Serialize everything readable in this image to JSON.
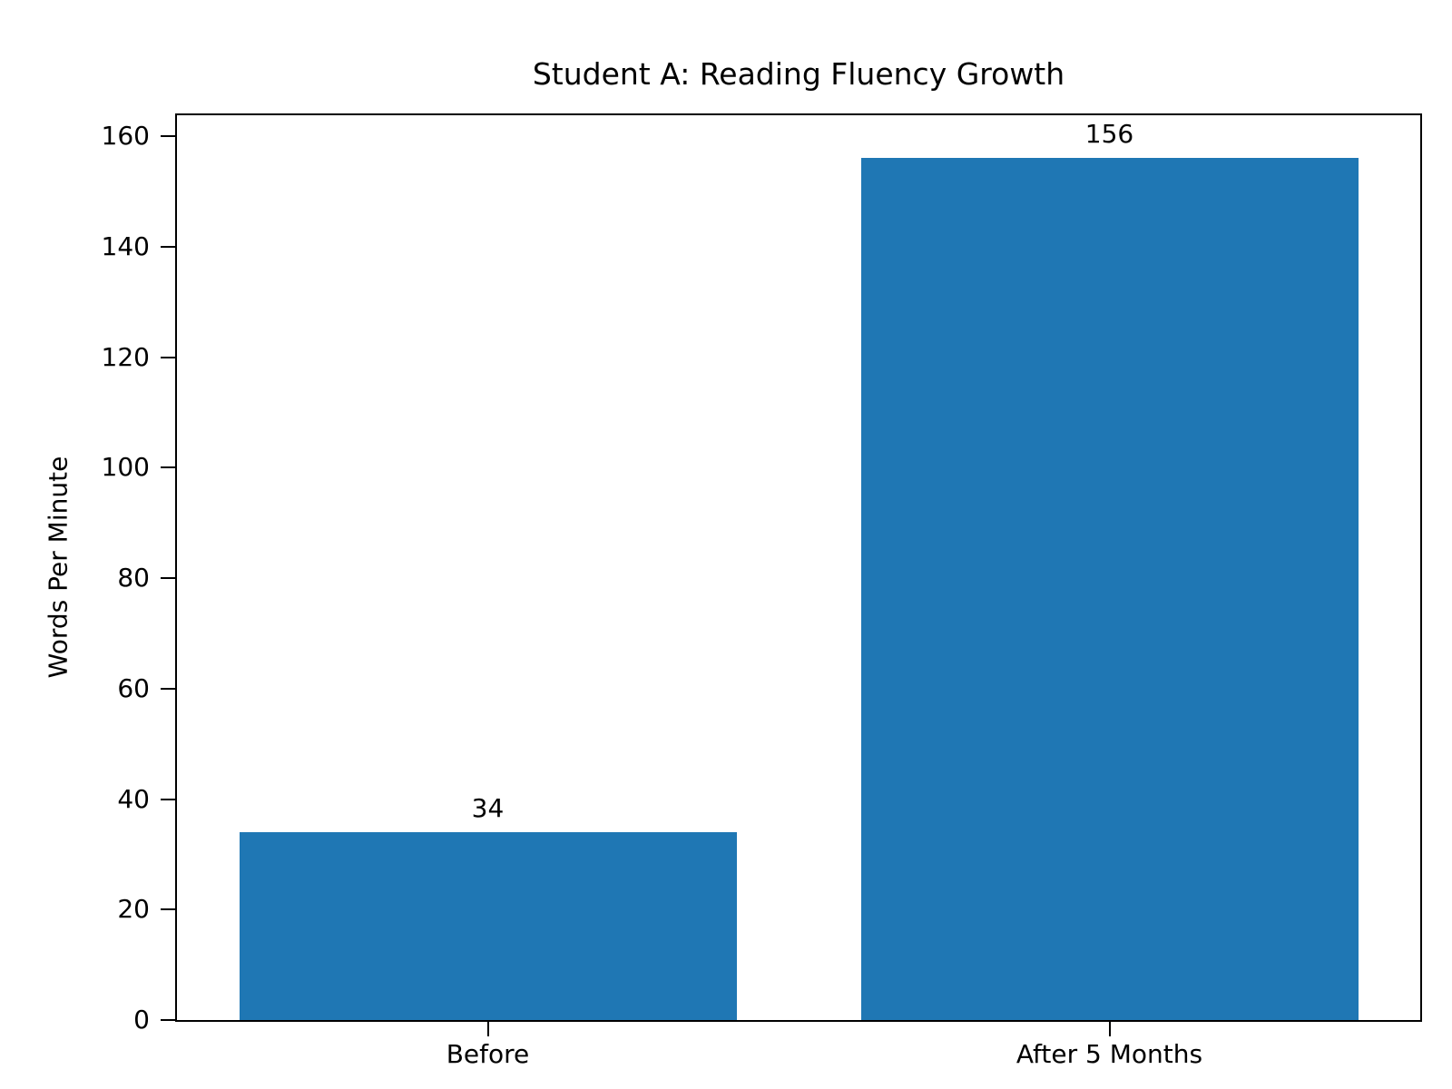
{
  "chart_data": {
    "type": "bar",
    "title": "Student A: Reading Fluency Growth",
    "xlabel": "",
    "ylabel": "Words Per Minute",
    "categories": [
      "Before",
      "After 5 Months"
    ],
    "values": [
      34,
      156
    ],
    "value_labels": [
      "34",
      "156"
    ],
    "yticks": [
      0,
      20,
      40,
      60,
      80,
      100,
      120,
      140,
      160
    ],
    "ylim": [
      0,
      163.8
    ],
    "bar_color": "#1f77b4",
    "bar_width_fraction": 0.4,
    "grid": false,
    "legend": "none",
    "axis_color": "#000000",
    "text_color": "#000000",
    "background_color": "#ffffff"
  }
}
